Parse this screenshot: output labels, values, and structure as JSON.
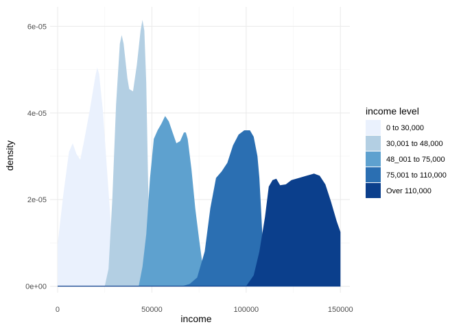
{
  "chart_data": {
    "type": "area",
    "xlabel": "income",
    "ylabel": "density",
    "xlim": [
      -4000,
      155000
    ],
    "ylim": [
      -1.5e-06,
      6.45e-05
    ],
    "x_ticks": [
      0,
      50000,
      100000,
      150000
    ],
    "x_tick_labels": [
      "0",
      "50000",
      "100000",
      "150000"
    ],
    "y_ticks": [
      0,
      2e-05,
      4e-05,
      6e-05
    ],
    "y_tick_labels": [
      "0e+00",
      "2e-05",
      "4e-05",
      "6e-05"
    ],
    "grid": true,
    "legend": {
      "title": "income level",
      "position": "right"
    },
    "series": [
      {
        "name": "0 to 30,000",
        "color": "#eaf1fd",
        "points": [
          [
            0,
            9.7e-06
          ],
          [
            3000,
            2.1e-05
          ],
          [
            6000,
            3.1e-05
          ],
          [
            8000,
            3.3e-05
          ],
          [
            10000,
            3.05e-05
          ],
          [
            12000,
            2.92e-05
          ],
          [
            14000,
            3.35e-05
          ],
          [
            17000,
            4.05e-05
          ],
          [
            20000,
            4.85e-05
          ],
          [
            21000,
            5.05e-05
          ],
          [
            22000,
            4.9e-05
          ],
          [
            24000,
            4.05e-05
          ],
          [
            26000,
            2.8e-05
          ],
          [
            28000,
            1.6e-05
          ],
          [
            30000,
            3e-06
          ],
          [
            31500,
            0
          ]
        ]
      },
      {
        "name": "30,001 to 48,000",
        "color": "#b3cfe3",
        "points": [
          [
            25000,
            0
          ],
          [
            27000,
            4e-06
          ],
          [
            29000,
            2e-05
          ],
          [
            31000,
            4.2e-05
          ],
          [
            33000,
            5.6e-05
          ],
          [
            34000,
            5.8e-05
          ],
          [
            35000,
            5.6e-05
          ],
          [
            37000,
            4.8e-05
          ],
          [
            38000,
            4.55e-05
          ],
          [
            40000,
            4.5e-05
          ],
          [
            42000,
            5.1e-05
          ],
          [
            44000,
            5.9e-05
          ],
          [
            45000,
            6.15e-05
          ],
          [
            46000,
            5.9e-05
          ],
          [
            47000,
            4.7e-05
          ],
          [
            48000,
            2.4e-05
          ],
          [
            49000,
            4e-06
          ],
          [
            50000,
            0
          ]
        ]
      },
      {
        "name": "48_001 to 75,000",
        "color": "#5ea1cf",
        "points": [
          [
            43000,
            0
          ],
          [
            45000,
            4.5e-06
          ],
          [
            47000,
            1.2e-05
          ],
          [
            49000,
            2.5e-05
          ],
          [
            51000,
            3.4e-05
          ],
          [
            53000,
            3.6e-05
          ],
          [
            55000,
            3.75e-05
          ],
          [
            57000,
            3.93e-05
          ],
          [
            59000,
            3.8e-05
          ],
          [
            61000,
            3.55e-05
          ],
          [
            63000,
            3.3e-05
          ],
          [
            65000,
            3.35e-05
          ],
          [
            67000,
            3.55e-05
          ],
          [
            68000,
            3.55e-05
          ],
          [
            69000,
            3.4e-05
          ],
          [
            71000,
            2.7e-05
          ],
          [
            73000,
            1.8e-05
          ],
          [
            75000,
            1.1e-05
          ],
          [
            77000,
            4.5e-06
          ],
          [
            79000,
            1e-06
          ],
          [
            81000,
            0
          ]
        ]
      },
      {
        "name": "75,001 to 110,000",
        "color": "#2b6fb2",
        "points": [
          [
            66000,
            0
          ],
          [
            70000,
            5e-07
          ],
          [
            74000,
            2e-06
          ],
          [
            78000,
            8e-06
          ],
          [
            81000,
            1.8e-05
          ],
          [
            84000,
            2.5e-05
          ],
          [
            87000,
            2.65e-05
          ],
          [
            90000,
            2.85e-05
          ],
          [
            93000,
            3.25e-05
          ],
          [
            96000,
            3.5e-05
          ],
          [
            99000,
            3.6e-05
          ],
          [
            102000,
            3.6e-05
          ],
          [
            104000,
            3.45e-05
          ],
          [
            106000,
            3e-05
          ],
          [
            107000,
            2.5e-05
          ],
          [
            108000,
            1.7e-05
          ],
          [
            109000,
            8e-06
          ],
          [
            110000,
            3.5e-06
          ],
          [
            112000,
            5e-07
          ],
          [
            114000,
            0
          ]
        ]
      },
      {
        "name": "Over 110,000",
        "color": "#0b3f8c",
        "points": [
          [
            100000,
            0
          ],
          [
            104000,
            2.5e-06
          ],
          [
            107000,
            8e-06
          ],
          [
            110000,
            1.6e-05
          ],
          [
            112000,
            2.3e-05
          ],
          [
            114000,
            2.45e-05
          ],
          [
            116000,
            2.48e-05
          ],
          [
            118000,
            2.33e-05
          ],
          [
            121000,
            2.35e-05
          ],
          [
            124000,
            2.45e-05
          ],
          [
            128000,
            2.5e-05
          ],
          [
            132000,
            2.55e-05
          ],
          [
            136000,
            2.6e-05
          ],
          [
            139000,
            2.55e-05
          ],
          [
            142000,
            2.35e-05
          ],
          [
            145000,
            1.95e-05
          ],
          [
            148000,
            1.5e-05
          ],
          [
            150000,
            1.25e-05
          ],
          [
            150000,
            0
          ]
        ]
      }
    ]
  }
}
